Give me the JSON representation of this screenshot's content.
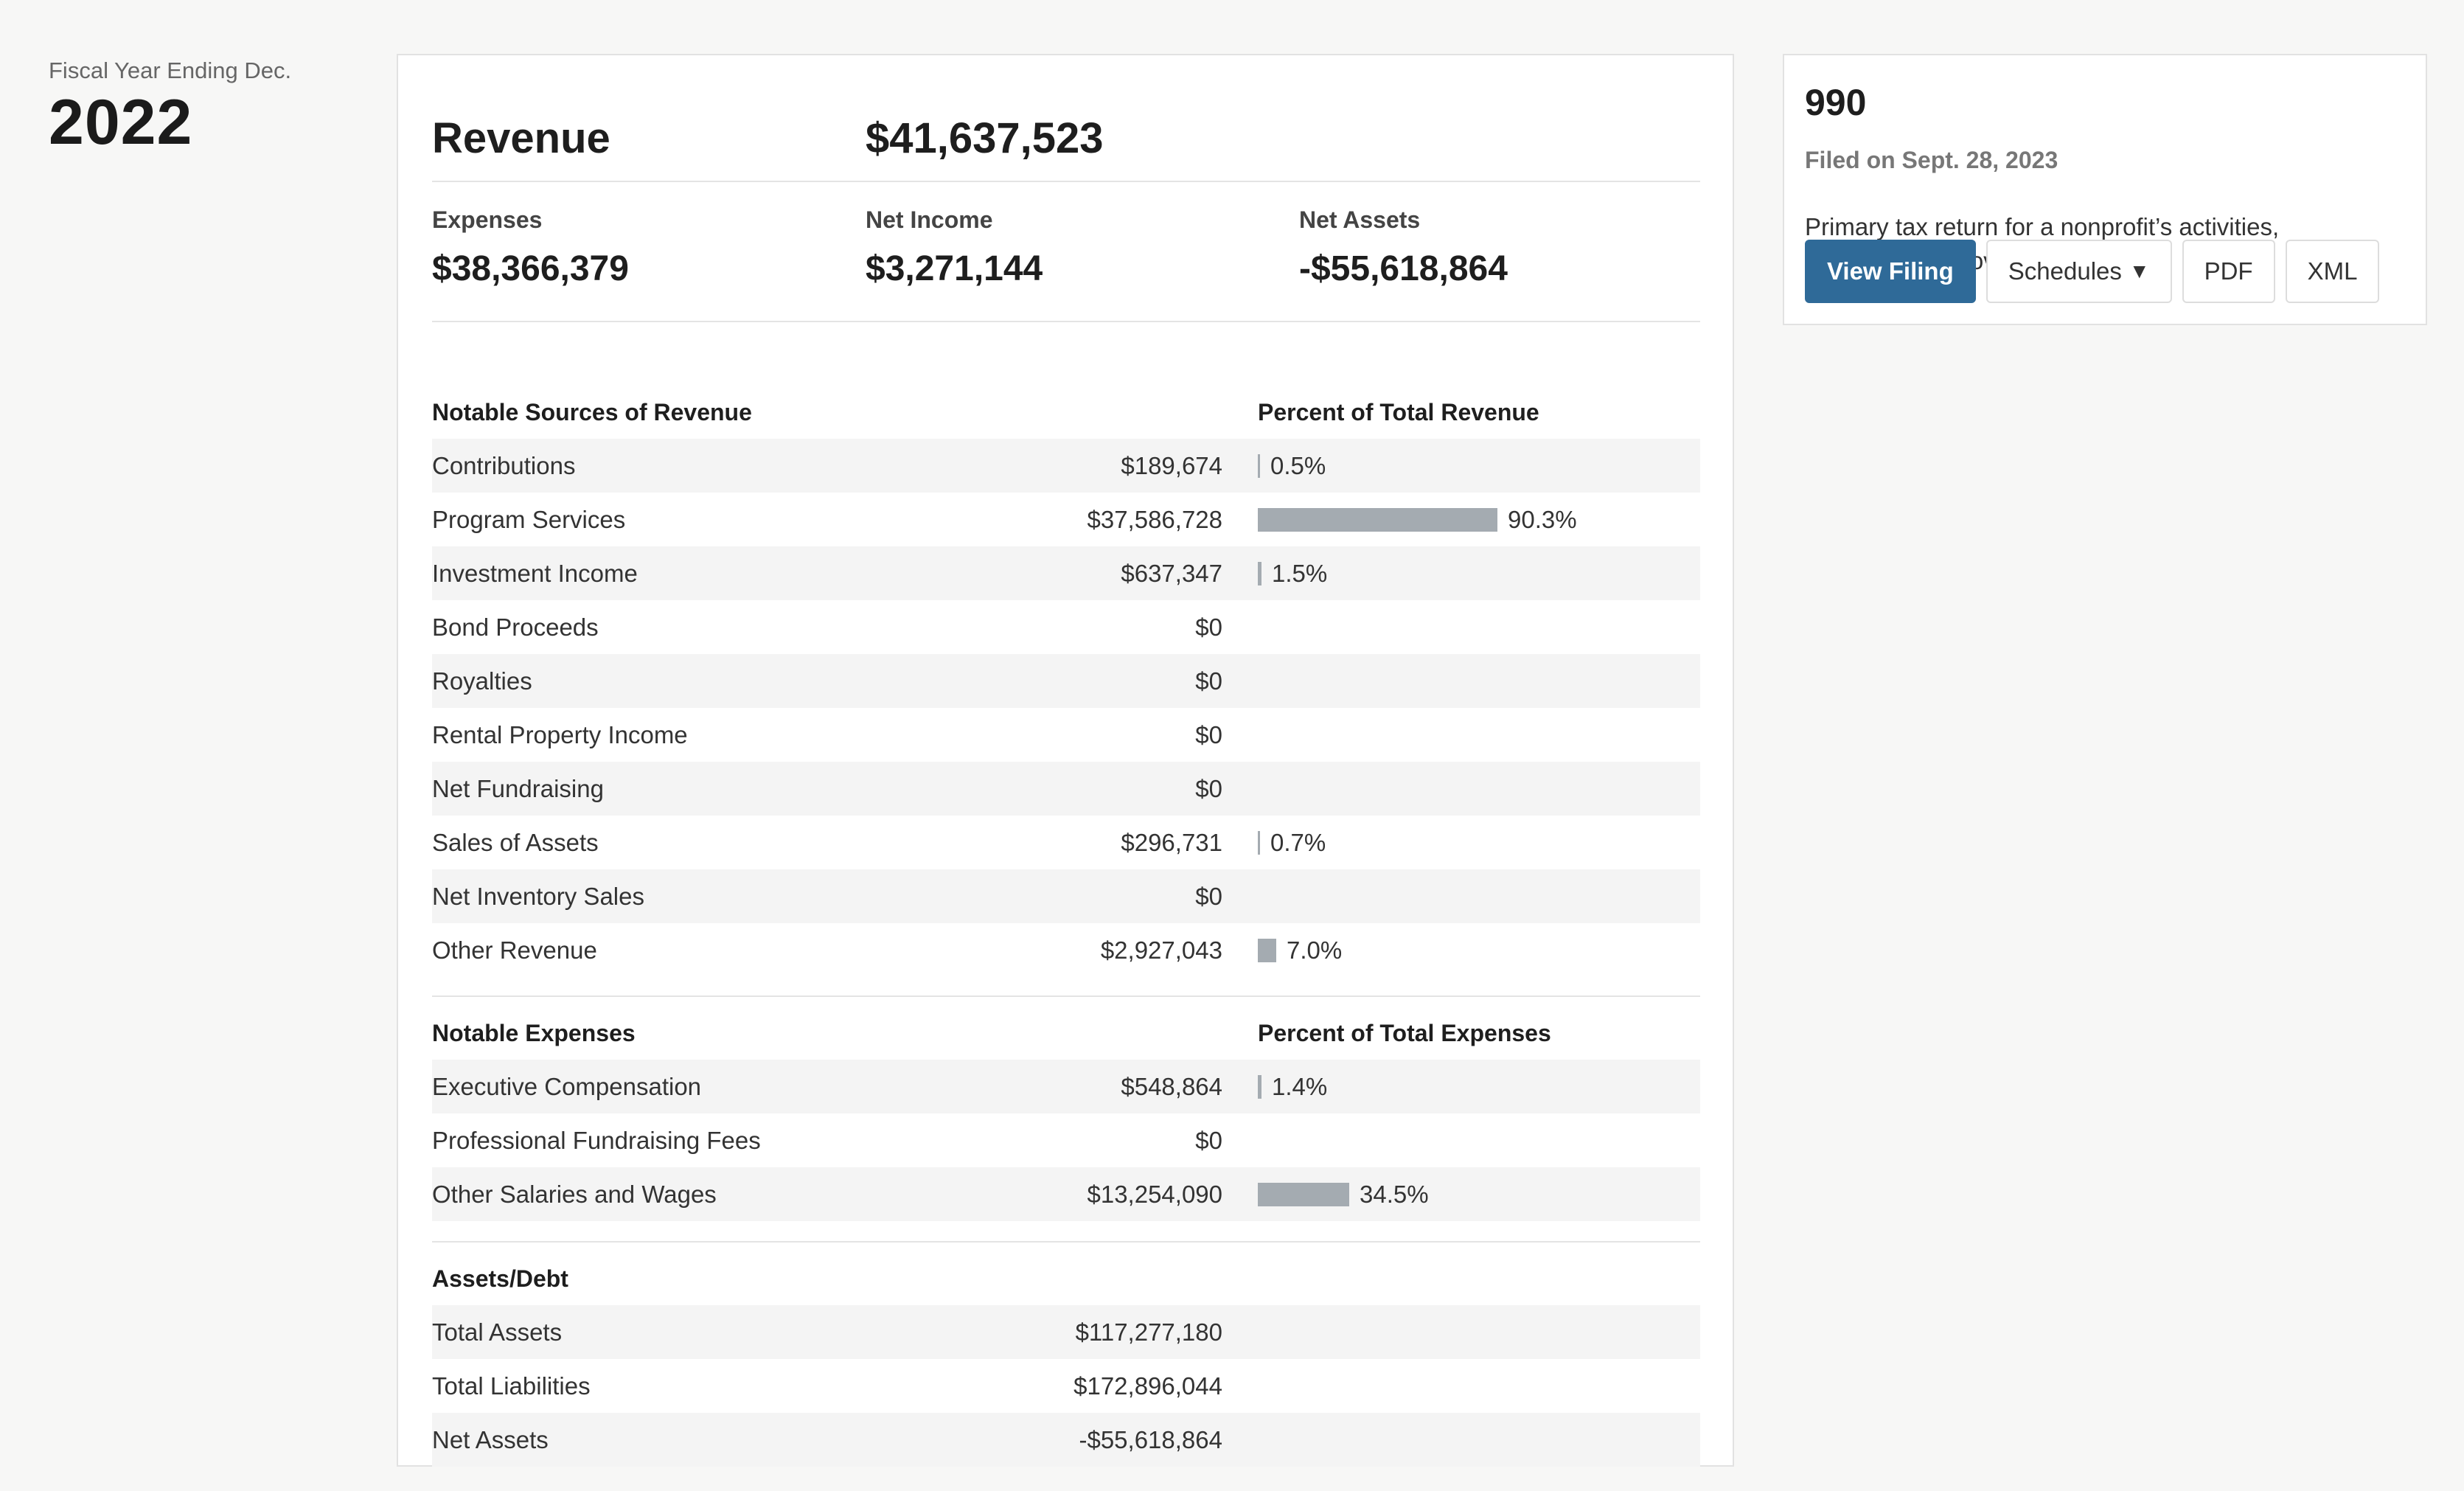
{
  "fiscal": {
    "label": "Fiscal Year Ending Dec.",
    "year": "2022"
  },
  "summary": {
    "revenue_label": "Revenue",
    "revenue_value": "$41,637,523",
    "expenses_label": "Expenses",
    "expenses_value": "$38,366,379",
    "net_income_label": "Net Income",
    "net_income_value": "$3,271,144",
    "net_assets_label": "Net Assets",
    "net_assets_value": "-$55,618,864"
  },
  "revenue_sources": {
    "title": "Notable Sources of Revenue",
    "pct_header": "Percent of Total Revenue",
    "rows": [
      {
        "label": "Contributions",
        "amount": "$189,674",
        "pct": "0.5%",
        "pct_value": 0.5
      },
      {
        "label": "Program Services",
        "amount": "$37,586,728",
        "pct": "90.3%",
        "pct_value": 90.3
      },
      {
        "label": "Investment Income",
        "amount": "$637,347",
        "pct": "1.5%",
        "pct_value": 1.5
      },
      {
        "label": "Bond Proceeds",
        "amount": "$0",
        "pct": "",
        "pct_value": 0
      },
      {
        "label": "Royalties",
        "amount": "$0",
        "pct": "",
        "pct_value": 0
      },
      {
        "label": "Rental Property Income",
        "amount": "$0",
        "pct": "",
        "pct_value": 0
      },
      {
        "label": "Net Fundraising",
        "amount": "$0",
        "pct": "",
        "pct_value": 0
      },
      {
        "label": "Sales of Assets",
        "amount": "$296,731",
        "pct": "0.7%",
        "pct_value": 0.7
      },
      {
        "label": "Net Inventory Sales",
        "amount": "$0",
        "pct": "",
        "pct_value": 0
      },
      {
        "label": "Other Revenue",
        "amount": "$2,927,043",
        "pct": "7.0%",
        "pct_value": 7.0
      }
    ]
  },
  "expenses": {
    "title": "Notable Expenses",
    "pct_header": "Percent of Total Expenses",
    "rows": [
      {
        "label": "Executive Compensation",
        "amount": "$548,864",
        "pct": "1.4%",
        "pct_value": 1.4
      },
      {
        "label": "Professional Fundraising Fees",
        "amount": "$0",
        "pct": "",
        "pct_value": 0
      },
      {
        "label": "Other Salaries and Wages",
        "amount": "$13,254,090",
        "pct": "34.5%",
        "pct_value": 34.5
      }
    ]
  },
  "assets_debt": {
    "title": "Assets/Debt",
    "rows": [
      {
        "label": "Total Assets",
        "amount": "$117,277,180"
      },
      {
        "label": "Total Liabilities",
        "amount": "$172,896,044"
      },
      {
        "label": "Net Assets",
        "amount": "-$55,618,864"
      }
    ]
  },
  "filing": {
    "form": "990",
    "filed_on": "Filed on Sept. 28, 2023",
    "description": "Primary tax return for a nonprofit’s activities, finances, and governance",
    "buttons": {
      "view_filing": "View Filing",
      "schedules": "Schedules",
      "pdf": "PDF",
      "xml": "XML"
    }
  },
  "colors": {
    "bar": "#a4abb1",
    "primary_button": "#2f6a98",
    "row_alt": "#f4f4f4"
  }
}
